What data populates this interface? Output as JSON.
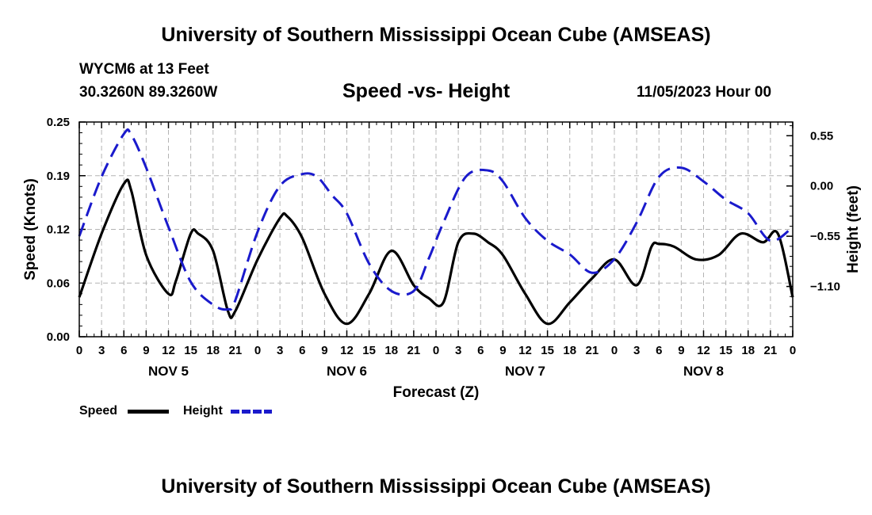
{
  "header": {
    "title": "University of Southern Mississippi Ocean Cube (AMSEAS)",
    "station": "WYCM6 at 13 Feet",
    "coords": "30.3260N  89.3260W",
    "subtitle": "Speed -vs- Height",
    "datetime": "11/05/2023 Hour 00"
  },
  "footer": {
    "title": "University of Southern Mississippi Ocean Cube (AMSEAS)"
  },
  "legend": {
    "speed_label": "Speed",
    "height_label": "Height"
  },
  "colors": {
    "speed": "#000000",
    "height": "#1a1acc",
    "grid": "#b4b4b4"
  },
  "chart_data": {
    "type": "line",
    "xlabel": "Forecast (Z)",
    "ylabel_left": "Speed (Knots)",
    "ylabel_right": "Height (feet)",
    "xlim_hours": [
      0,
      96
    ],
    "ylim_left": [
      0.0,
      0.25
    ],
    "ylim_right": [
      -1.65,
      0.7
    ],
    "x_tick_labels": [
      "0",
      "3",
      "6",
      "9",
      "12",
      "15",
      "18",
      "21",
      "0",
      "3",
      "6",
      "9",
      "12",
      "15",
      "18",
      "21",
      "0",
      "3",
      "6",
      "9",
      "12",
      "15",
      "18",
      "21",
      "0",
      "3",
      "6",
      "9",
      "12",
      "15",
      "18",
      "21",
      "0"
    ],
    "y_left_ticks": [
      "0.00",
      "0.06",
      "0.12",
      "0.19",
      "0.25"
    ],
    "y_left_tick_values": [
      0.0,
      0.0625,
      0.125,
      0.1875,
      0.25
    ],
    "y_right_ticks": [
      "0.55",
      "0.00",
      "−0.55",
      "−1.10"
    ],
    "y_right_tick_values": [
      0.55,
      0.0,
      -0.55,
      -1.1
    ],
    "day_labels": [
      {
        "label": "NOV 5",
        "hour": 12
      },
      {
        "label": "NOV 6",
        "hour": 36
      },
      {
        "label": "NOV 7",
        "hour": 60
      },
      {
        "label": "NOV 8",
        "hour": 84
      }
    ],
    "series": [
      {
        "name": "Speed",
        "axis": "left",
        "style": "solid",
        "hours": [
          0,
          3,
          6,
          7,
          9,
          12,
          13,
          15,
          16,
          18,
          20,
          21,
          24,
          27,
          28,
          30,
          33,
          36,
          39,
          42,
          45,
          47,
          49,
          51,
          53,
          55,
          57,
          60,
          63,
          66,
          69,
          72,
          75,
          77,
          78,
          80,
          83,
          86,
          89,
          92,
          94,
          96
        ],
        "values": [
          0.046,
          0.12,
          0.178,
          0.17,
          0.095,
          0.05,
          0.065,
          0.12,
          0.12,
          0.1,
          0.03,
          0.03,
          0.09,
          0.138,
          0.14,
          0.115,
          0.05,
          0.015,
          0.05,
          0.1,
          0.06,
          0.045,
          0.04,
          0.11,
          0.12,
          0.11,
          0.095,
          0.05,
          0.015,
          0.04,
          0.068,
          0.09,
          0.06,
          0.105,
          0.108,
          0.105,
          0.09,
          0.095,
          0.12,
          0.11,
          0.12,
          0.046
        ]
      },
      {
        "name": "Height",
        "axis": "right",
        "style": "dashed",
        "hours": [
          0,
          3,
          6,
          7,
          9,
          12,
          15,
          18,
          20,
          21,
          24,
          27,
          30,
          32,
          34,
          36,
          39,
          42,
          45,
          47,
          49,
          52,
          55,
          57,
          60,
          63,
          66,
          69,
          72,
          75,
          78,
          81,
          84,
          87,
          90,
          93,
          96
        ],
        "values": [
          -0.55,
          0.1,
          0.57,
          0.56,
          0.2,
          -0.45,
          -1.05,
          -1.3,
          -1.35,
          -1.25,
          -0.5,
          0.0,
          0.13,
          0.1,
          -0.1,
          -0.3,
          -0.85,
          -1.15,
          -1.15,
          -0.8,
          -0.4,
          0.1,
          0.17,
          0.05,
          -0.35,
          -0.6,
          -0.75,
          -0.95,
          -0.8,
          -0.4,
          0.1,
          0.2,
          0.05,
          -0.15,
          -0.3,
          -0.6,
          -0.45
        ]
      }
    ]
  }
}
